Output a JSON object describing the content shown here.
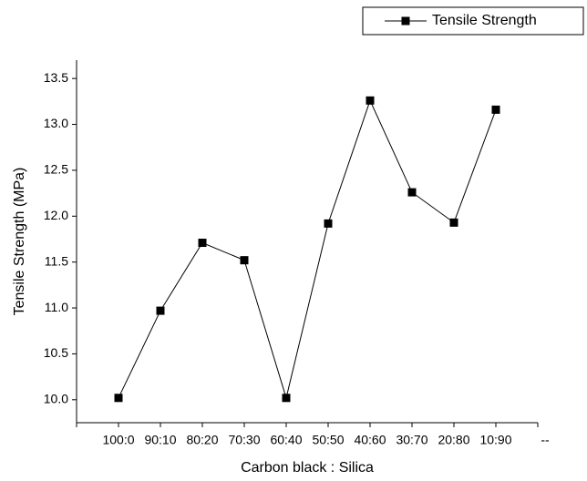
{
  "chart_data": {
    "type": "line",
    "x_label": "Carbon black : Silica",
    "y_label": "Tensile Strength (MPa)",
    "categories": [
      null,
      "100:0",
      "90:10",
      "80:20",
      "70:30",
      "60:40",
      "50:50",
      "40:60",
      "30:70",
      "20:80",
      "10:90",
      "--"
    ],
    "series": [
      {
        "name": "Tensile Strength",
        "color": "#000000",
        "values": [
          null,
          10.02,
          10.97,
          11.71,
          11.52,
          10.02,
          11.92,
          13.26,
          12.26,
          11.93,
          13.16,
          null
        ]
      }
    ],
    "ylim": [
      9.75,
      13.7
    ],
    "yticks": [
      {
        "value": 10,
        "label": "10.0"
      },
      {
        "value": 10.5,
        "label": "10.5"
      },
      {
        "value": 11,
        "label": "11.0"
      },
      {
        "value": 11.5,
        "label": "11.5"
      },
      {
        "value": 12,
        "label": "12.0"
      },
      {
        "value": 12.5,
        "label": "12.5"
      },
      {
        "value": 13,
        "label": "13.0"
      },
      {
        "value": 13.5,
        "label": "13.5"
      }
    ],
    "grid": false,
    "legend": "top-right"
  }
}
